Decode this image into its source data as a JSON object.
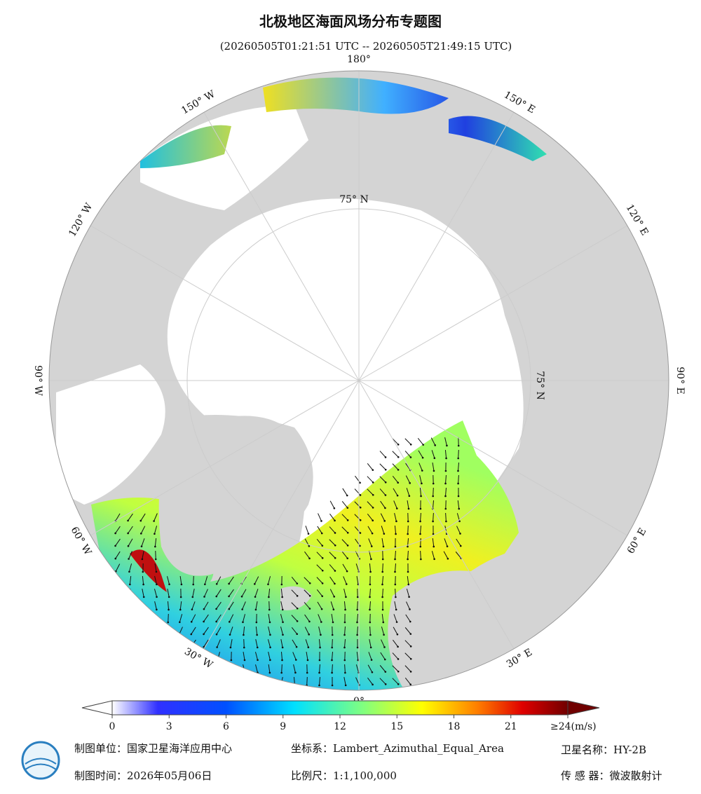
{
  "title": "北极地区海面风场分布专题图",
  "subtitle": "(20260505T01:21:51 UTC -- 20260505T21:49:15 UTC)",
  "map": {
    "longitude_labels": [
      "180°",
      "150° E",
      "120° E",
      "90° E",
      "60° E",
      "30° E",
      "0°",
      "30° W",
      "60° W",
      "90° W",
      "120° W",
      "150° W"
    ],
    "latitude_labels": [
      "75° N",
      "75° N"
    ]
  },
  "colorbar": {
    "min": 0,
    "max": 24,
    "ticks": [
      0,
      3,
      6,
      9,
      12,
      15,
      18,
      21
    ],
    "max_label": "≥24(m/s)"
  },
  "footer": {
    "unit": "制图单位：国家卫星海洋应用中心",
    "coords": "坐标系：Lambert_Azimuthal_Equal_Area",
    "satellite": "卫星名称：HY-2B",
    "date": "制图时间：2026年05月06日",
    "scale": "比例尺：1:1,100,000",
    "sensor": "传 感 器：微波散射计"
  }
}
